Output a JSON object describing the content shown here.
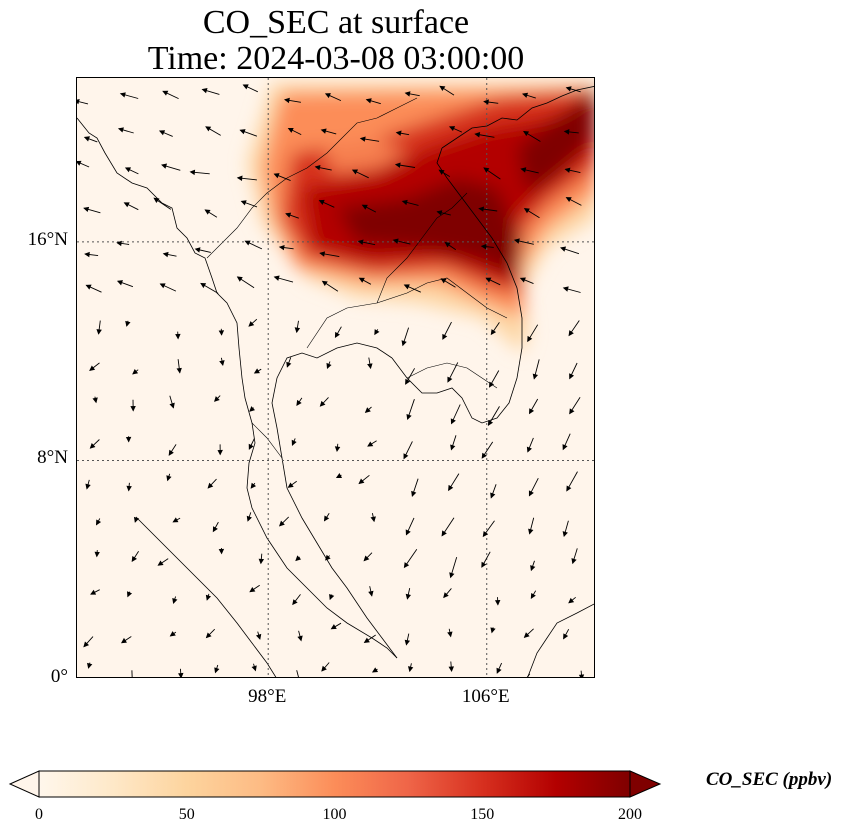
{
  "title": {
    "line1": "CO_SEC at surface",
    "line2": "Time: 2024-03-08 03:00:00"
  },
  "map": {
    "projection": "PlateCarree",
    "lon_range": [
      91,
      110
    ],
    "lat_range": [
      0,
      22
    ],
    "gridlines": "dotted",
    "lat_ticks": [
      {
        "value": 16,
        "label": "16°N"
      },
      {
        "value": 8,
        "label": "8°N"
      },
      {
        "value": 0,
        "label": "0°"
      }
    ],
    "lon_ticks": [
      {
        "value": 98,
        "label": "98°E"
      },
      {
        "value": 106,
        "label": "106°E"
      }
    ],
    "field": "CO_SEC",
    "field_units": "ppbv",
    "plume_description_hotspots": [
      {
        "lon": 104.0,
        "lat": 17.5,
        "value": 195
      },
      {
        "lon": 106.5,
        "lat": 16.0,
        "value": 200
      },
      {
        "lon": 108.0,
        "lat": 15.2,
        "value": 200
      },
      {
        "lon": 102.5,
        "lat": 18.8,
        "value": 185
      },
      {
        "lon": 106.0,
        "lat": 19.5,
        "value": 170
      },
      {
        "lon": 108.5,
        "lat": 20.2,
        "value": 190
      },
      {
        "lon": 109.5,
        "lat": 21.3,
        "value": 200
      },
      {
        "lon": 101.8,
        "lat": 19.8,
        "value": 130
      }
    ]
  },
  "colorbar": {
    "label": "CO_SEC (ppbv)",
    "vmin": 0,
    "vmax": 200,
    "extend": "both",
    "colormap": "OrRd",
    "ticks": [
      {
        "value": 0,
        "label": "0"
      },
      {
        "value": 50,
        "label": "50"
      },
      {
        "value": 100,
        "label": "100"
      },
      {
        "value": 150,
        "label": "150"
      },
      {
        "value": 200,
        "label": "200"
      }
    ],
    "colors": [
      "#fff7ec",
      "#fee8c8",
      "#fdd49e",
      "#fdbb84",
      "#fc8d59",
      "#ef6548",
      "#d7301f",
      "#b30000",
      "#7f0000"
    ]
  }
}
